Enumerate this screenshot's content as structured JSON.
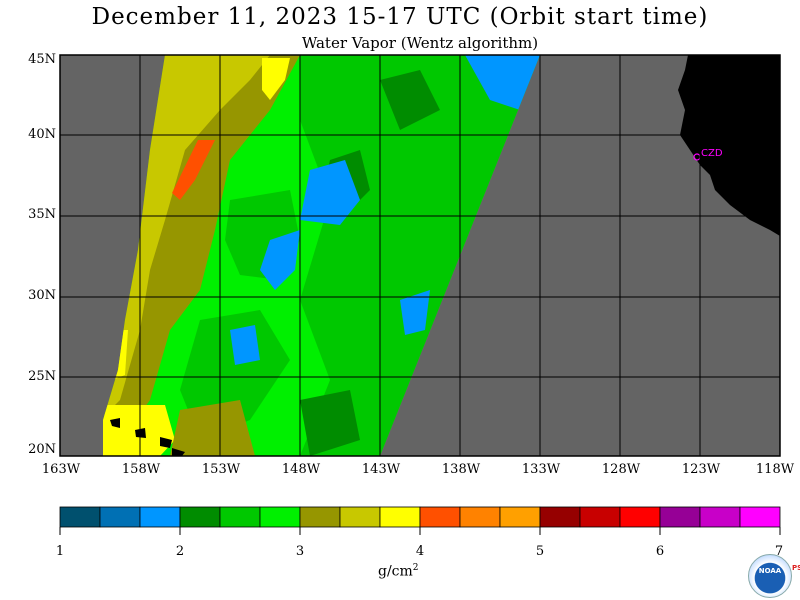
{
  "title": "December 11, 2023  15-17 UTC  (Orbit start time)",
  "subtitle": "Water Vapor (Wentz algorithm)",
  "lat_labels": [
    "45N",
    "40N",
    "35N",
    "30N",
    "25N",
    "20N"
  ],
  "lon_labels": [
    "163W",
    "158W",
    "153W",
    "148W",
    "143W",
    "138W",
    "133W",
    "128W",
    "123W",
    "118W"
  ],
  "station_label": "CZD",
  "colorbar": {
    "colors": [
      "#00506e",
      "#0070b4",
      "#0096ff",
      "#008c00",
      "#00c800",
      "#00f000",
      "#969600",
      "#c8c800",
      "#ffff00",
      "#ff5000",
      "#ff8200",
      "#ffa000",
      "#960000",
      "#c80000",
      "#ff0000",
      "#960096",
      "#c800c8",
      "#ff00ff"
    ],
    "ticks": [
      "1",
      "2",
      "3",
      "4",
      "5",
      "6",
      "7"
    ]
  },
  "unit_label": "g/cm",
  "unit_exp": "2",
  "logo_text": "NOAA",
  "psl_text": "PSL"
}
